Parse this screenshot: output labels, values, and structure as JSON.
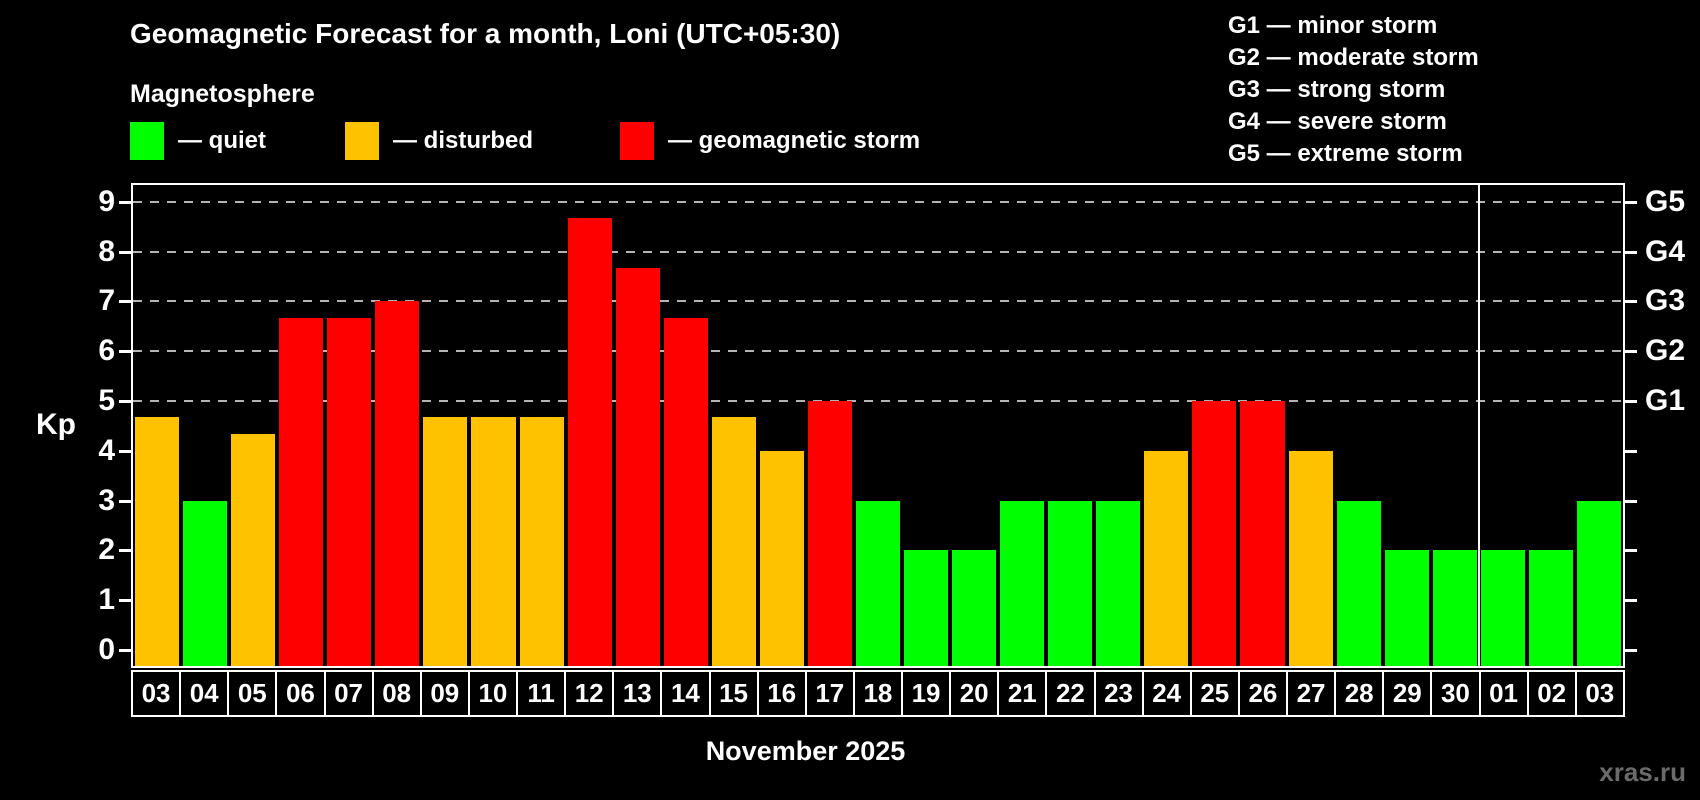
{
  "header": {
    "title": "Geomagnetic Forecast for a month, Loni (UTC+05:30)",
    "subtitle": "Magnetosphere"
  },
  "legend": {
    "items": [
      {
        "key": "quiet",
        "label": "— quiet",
        "color": "#00ff00"
      },
      {
        "key": "disturbed",
        "label": "— disturbed",
        "color": "#ffc200"
      },
      {
        "key": "storm",
        "label": "— geomagnetic storm",
        "color": "#ff0000"
      }
    ]
  },
  "storm_scale_legend": [
    {
      "text": "G1 — minor storm"
    },
    {
      "text": "G2 — moderate storm"
    },
    {
      "text": "G3 — strong storm"
    },
    {
      "text": "G4 — severe storm"
    },
    {
      "text": "G5 — extreme storm"
    }
  ],
  "chart_data": {
    "type": "bar",
    "title": "Geomagnetic Forecast for a month, Loni (UTC+05:30)",
    "xlabel": "November 2025",
    "ylabel": "Kp",
    "ylim": [
      0,
      9
    ],
    "yticks": [
      0,
      1,
      2,
      3,
      4,
      5,
      6,
      7,
      8,
      9
    ],
    "gridlines_kp": [
      5,
      6,
      7,
      8,
      9
    ],
    "grid": "dashed",
    "right_axis": [
      {
        "kp": 5,
        "label": "G1"
      },
      {
        "kp": 6,
        "label": "G2"
      },
      {
        "kp": 7,
        "label": "G3"
      },
      {
        "kp": 8,
        "label": "G4"
      },
      {
        "kp": 9,
        "label": "G5"
      }
    ],
    "categories": [
      "03",
      "04",
      "05",
      "06",
      "07",
      "08",
      "09",
      "10",
      "11",
      "12",
      "13",
      "14",
      "15",
      "16",
      "17",
      "18",
      "19",
      "20",
      "21",
      "22",
      "23",
      "24",
      "25",
      "26",
      "27",
      "28",
      "29",
      "30",
      "01",
      "02",
      "03"
    ],
    "values": [
      4.67,
      3,
      4.33,
      6.67,
      6.67,
      7,
      4.67,
      4.67,
      4.67,
      8.67,
      7.67,
      6.67,
      4.67,
      4,
      5,
      3,
      2,
      2,
      3,
      3,
      3,
      4,
      5,
      5,
      4,
      3,
      2,
      2,
      2,
      2,
      3
    ],
    "statuses": [
      "disturbed",
      "quiet",
      "disturbed",
      "storm",
      "storm",
      "storm",
      "disturbed",
      "disturbed",
      "disturbed",
      "storm",
      "storm",
      "storm",
      "disturbed",
      "disturbed",
      "storm",
      "quiet",
      "quiet",
      "quiet",
      "quiet",
      "quiet",
      "quiet",
      "disturbed",
      "storm",
      "storm",
      "disturbed",
      "quiet",
      "quiet",
      "quiet",
      "quiet",
      "quiet",
      "quiet"
    ],
    "status_colors": {
      "quiet": "#00ff00",
      "disturbed": "#ffc200",
      "storm": "#ff0000"
    },
    "month_separator_after_index": 27,
    "watermark": "xras.ru"
  }
}
